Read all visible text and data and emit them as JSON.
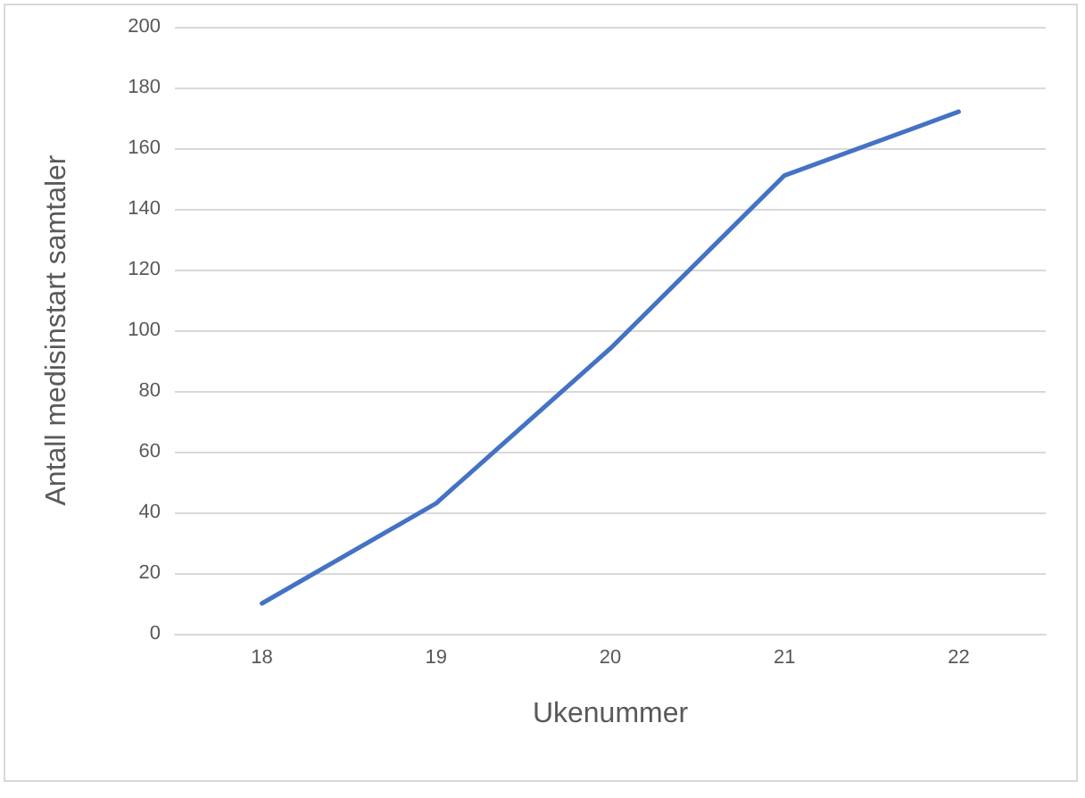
{
  "chart_data": {
    "type": "line",
    "xlabel": "Ukenummer",
    "ylabel": "Antall medisinstart samtaler",
    "categories": [
      "18",
      "19",
      "20",
      "21",
      "22"
    ],
    "series": [
      {
        "color": "#4472c4",
        "values": [
          10,
          43,
          94,
          151,
          172
        ]
      }
    ],
    "ylim": [
      0,
      200
    ],
    "yticks": [
      0,
      20,
      40,
      60,
      80,
      100,
      120,
      140,
      160,
      180,
      200
    ],
    "grid": "y",
    "marker": "none",
    "line_style": "solid"
  }
}
